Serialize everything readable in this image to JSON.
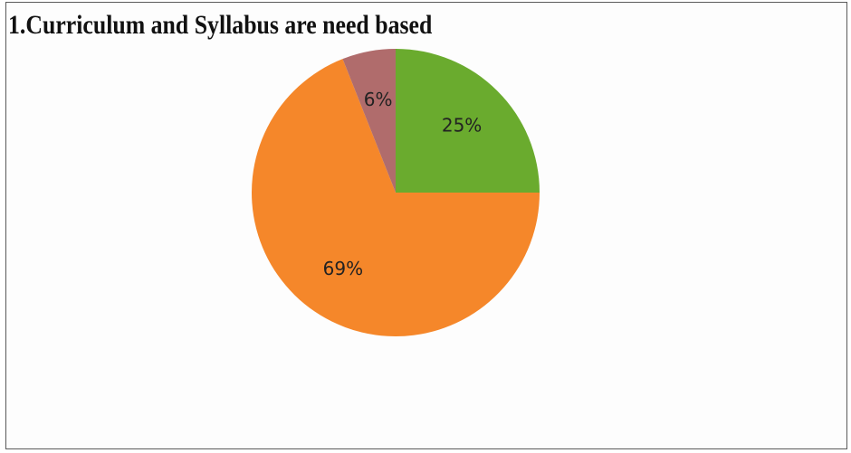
{
  "chart_data": {
    "type": "pie",
    "title": "1.Curriculum and Syllabus are need based",
    "slices": [
      {
        "label": "25%",
        "value": 25,
        "color": "#6aab2e"
      },
      {
        "label": "69%",
        "value": 69,
        "color": "#f5872a"
      },
      {
        "label": "6%",
        "value": 6,
        "color": "#b06c6c"
      }
    ],
    "start": "12 o'clock",
    "direction": "clockwise",
    "legend": "none"
  }
}
